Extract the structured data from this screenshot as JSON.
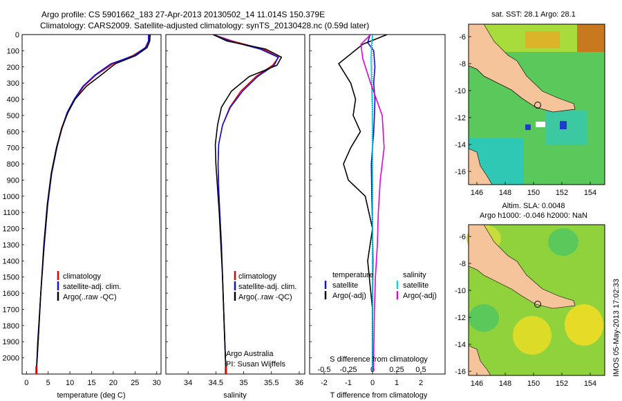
{
  "header": {
    "line1": "Argo profile: CS 5901662_183 27-Apr-2013 20130502_14 11.014S 150.379E",
    "line2": "Climatology: CARS2009. Satellite-adjusted climatology: synTS_20130428.nc (0.59d later)"
  },
  "colors": {
    "climatology": "#e00000",
    "satellite": "#1010e0",
    "argo": "#000000",
    "sal_sat": "#00d8e8",
    "sal_argo": "#e000e0",
    "land": "#f5c49a"
  },
  "chart_data": [
    {
      "type": "line",
      "title": "",
      "xlabel": "temperature (deg C)",
      "ylabel": "",
      "xlim": [
        -1,
        31
      ],
      "ylim": [
        2100,
        0
      ],
      "xticks": [
        "0",
        "5",
        "10",
        "15",
        "20",
        "25",
        "30"
      ],
      "yticks": [
        "0",
        "100",
        "200",
        "300",
        "400",
        "500",
        "600",
        "700",
        "800",
        "900",
        "1000",
        "1100",
        "1200",
        "1300",
        "1400",
        "1500",
        "1600",
        "1700",
        "1800",
        "1900",
        "2000"
      ],
      "legend": [
        "climatology",
        "satellite-adj. clim.",
        "Argo(..raw -QC)"
      ],
      "series": [
        {
          "name": "climatology",
          "x": [
            28.3,
            28.2,
            27.5,
            24.5,
            20,
            16,
            13.2,
            11.2,
            9.5,
            8.2,
            7,
            5.8,
            4.9,
            4.1,
            3.3,
            2.7,
            2.3
          ],
          "y": [
            0,
            40,
            80,
            130,
            180,
            250,
            320,
            400,
            480,
            580,
            700,
            860,
            1050,
            1300,
            1600,
            1900,
            2080
          ]
        },
        {
          "name": "satellite-adj. clim.",
          "x": [
            28.1,
            28.1,
            27.4,
            24.8,
            19.5,
            15.8,
            13,
            11,
            9.4,
            8.1,
            7,
            5.8,
            4.9,
            4.1,
            3.3,
            2.7,
            2.3
          ],
          "y": [
            0,
            40,
            80,
            130,
            180,
            250,
            320,
            400,
            480,
            580,
            700,
            860,
            1050,
            1300,
            1600,
            1900,
            2080
          ]
        },
        {
          "name": "Argo(..raw -QC)",
          "x": [
            28.5,
            28.4,
            27.8,
            25.2,
            20.5,
            17.2,
            13.8,
            11.2,
            9.6,
            8.1,
            6.9,
            5.7,
            4.8,
            4,
            3.3,
            2.6,
            2.3
          ],
          "y": [
            0,
            40,
            80,
            130,
            180,
            250,
            320,
            400,
            480,
            580,
            700,
            860,
            1050,
            1300,
            1600,
            1900,
            2080
          ]
        }
      ]
    },
    {
      "type": "line",
      "title": "",
      "xlabel": "salinity",
      "xlim": [
        33.6,
        36.1
      ],
      "ylim": [
        2100,
        0
      ],
      "xticks": [
        "34",
        "34.5",
        "35",
        "35.5",
        "36"
      ],
      "legend": [
        "climatology",
        "satellite-adj. clim.",
        "Argo(..raw -QC)"
      ],
      "annotation": [
        "Argo Australia",
        "PI: Susan Wijffels"
      ],
      "series": [
        {
          "name": "climatology",
          "x": [
            34.45,
            34.8,
            35.35,
            35.63,
            35.52,
            35.22,
            34.95,
            34.75,
            34.62,
            34.55,
            34.54,
            34.55,
            34.57,
            34.6,
            34.62,
            34.65,
            34.68
          ],
          "y": [
            0,
            40,
            90,
            140,
            190,
            260,
            350,
            450,
            560,
            680,
            800,
            950,
            1100,
            1300,
            1500,
            1800,
            2080
          ]
        },
        {
          "name": "satellite-adj. clim.",
          "x": [
            34.45,
            34.75,
            35.3,
            35.62,
            35.55,
            35.25,
            34.98,
            34.76,
            34.62,
            34.55,
            34.54,
            34.55,
            34.57,
            34.6,
            34.62,
            34.65,
            34.68
          ],
          "y": [
            0,
            40,
            90,
            140,
            190,
            260,
            350,
            450,
            560,
            680,
            800,
            950,
            1100,
            1300,
            1500,
            1800,
            2080
          ]
        },
        {
          "name": "Argo(..raw -QC)",
          "x": [
            34.45,
            34.7,
            35.4,
            35.68,
            35.6,
            35.1,
            34.78,
            34.6,
            34.53,
            34.49,
            34.5,
            34.53,
            34.56,
            34.59,
            34.62,
            34.65,
            34.68
          ],
          "y": [
            0,
            40,
            90,
            140,
            190,
            260,
            350,
            450,
            560,
            680,
            800,
            950,
            1100,
            1300,
            1500,
            1800,
            2080
          ]
        }
      ]
    },
    {
      "type": "line",
      "xlabel": "T difference from climatology",
      "xlabel_top": "S difference from climatology",
      "xlim": [
        -2.6,
        3
      ],
      "ylim": [
        2100,
        0
      ],
      "xticks": [
        "-2",
        "-1",
        "0",
        "1",
        "2"
      ],
      "xticks_top": [
        "-0.5",
        "-0.25",
        "0",
        "0.25",
        "0.5"
      ],
      "legend_titles": [
        "temperature",
        "salinity"
      ],
      "legend_t": [
        "satellite",
        "Argo(-adj)"
      ],
      "legend_s": [
        "satellite",
        "Argo(-adj)"
      ],
      "series": [
        {
          "name": "temperature satellite",
          "x": [
            -0.1,
            -0.2,
            0.05,
            0.1,
            0.05,
            0.1,
            0.08,
            0.05,
            0,
            -0.05,
            -0.03,
            0,
            0.02,
            0,
            0
          ],
          "y": [
            0,
            50,
            100,
            200,
            300,
            400,
            500,
            600,
            700,
            800,
            1000,
            1200,
            1400,
            1700,
            2080
          ]
        },
        {
          "name": "temperature Argo(-adj)",
          "x": [
            0.6,
            -0.4,
            -1.4,
            -0.9,
            -0.7,
            -0.8,
            -0.5,
            -0.9,
            -1.2,
            -1,
            -0.3,
            0,
            -0.2,
            0,
            0
          ],
          "y": [
            0,
            60,
            180,
            300,
            400,
            500,
            600,
            700,
            800,
            900,
            1000,
            1200,
            1400,
            1700,
            2080
          ]
        },
        {
          "name": "salinity satellite",
          "x": [
            0,
            -0.01,
            -0.015,
            -0.01,
            0,
            0,
            0,
            0,
            0,
            0,
            0,
            0
          ],
          "y": [
            0,
            60,
            150,
            300,
            500,
            800,
            1000,
            1300,
            1500,
            1700,
            1900,
            2080
          ]
        },
        {
          "name": "salinity Argo(-adj)",
          "x": [
            -0.02,
            -0.12,
            -0.1,
            -0.02,
            0.1,
            0.12,
            0.08,
            0.06,
            0.05,
            0.03,
            0.02,
            0.01
          ],
          "y": [
            0,
            60,
            150,
            300,
            500,
            700,
            900,
            1100,
            1300,
            1500,
            1700,
            2080
          ]
        }
      ]
    },
    {
      "type": "heatmap",
      "title": "sat. SST: 28.1 Argo: 28.1",
      "xticks": [
        "146",
        "148",
        "150",
        "152",
        "154"
      ],
      "yticks": [
        "-6",
        "-8",
        "-10",
        "-12",
        "-14",
        "-16"
      ]
    },
    {
      "type": "heatmap",
      "title_line1": "Altim. SLA: 0.0048",
      "title_line2": "Argo h1000: -0.046 h2000: NaN",
      "xticks": [
        "146",
        "148",
        "150",
        "152",
        "154"
      ],
      "yticks": [
        "-6",
        "-8",
        "-10",
        "-12",
        "-14",
        "-16"
      ]
    }
  ],
  "footer_stamp": "IMOS 05-May-2013 17:02:33"
}
